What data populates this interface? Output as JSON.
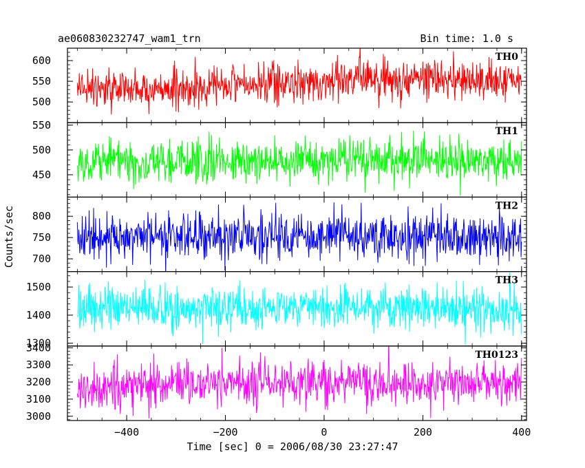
{
  "header": {
    "title": "ae060830232747_wam1_trn",
    "bin_time": "Bin time: 1.0 s"
  },
  "chart_data": {
    "type": "line",
    "title": "ae060830232747_wam1_trn",
    "subtitle": "Bin time: 1.0 s",
    "xlabel": "Time [sec] 0 = 2006/08/30 23:27:47",
    "ylabel": "Counts/sec",
    "xlim": [
      -520,
      410
    ],
    "x_ticks": [
      -400,
      -200,
      0,
      200,
      400
    ],
    "x_tick_labels": [
      "−400",
      "−200",
      "0",
      "200",
      "400"
    ],
    "x_range_data": [
      -500,
      400
    ],
    "bin_seconds": 1.0,
    "grid": false,
    "panels": [
      {
        "name": "TH0",
        "color": "#ff0000",
        "ylim": [
          450,
          630
        ],
        "y_ticks": [
          500,
          550,
          600
        ],
        "y_tick_labels": [
          "500",
          "550",
          "600"
        ],
        "mean": 540,
        "noise_std": 24,
        "trend": [
          [
            -500,
            535
          ],
          [
            -400,
            528
          ],
          [
            -200,
            538
          ],
          [
            0,
            550
          ],
          [
            100,
            552
          ],
          [
            200,
            560
          ],
          [
            300,
            550
          ],
          [
            400,
            550
          ]
        ]
      },
      {
        "name": "TH1",
        "color": "#00ff00",
        "ylim": [
          405,
          555
        ],
        "y_ticks": [
          450,
          500,
          550
        ],
        "y_tick_labels": [
          "450",
          "500",
          "550"
        ],
        "mean": 475,
        "noise_std": 22,
        "trend": [
          [
            -500,
            475
          ],
          [
            -200,
            478
          ],
          [
            0,
            478
          ],
          [
            200,
            478
          ],
          [
            400,
            475
          ]
        ]
      },
      {
        "name": "TH2",
        "color": "#0000ff",
        "ylim": [
          670,
          845
        ],
        "y_ticks": [
          700,
          750,
          800
        ],
        "y_tick_labels": [
          "700",
          "750",
          "800"
        ],
        "mean": 752,
        "noise_std": 28,
        "trend": [
          [
            -500,
            752
          ],
          [
            -200,
            752
          ],
          [
            0,
            755
          ],
          [
            200,
            752
          ],
          [
            400,
            750
          ]
        ]
      },
      {
        "name": "TH3",
        "color": "#00ffff",
        "ylim": [
          1290,
          1555
        ],
        "y_ticks": [
          1300,
          1400,
          1500
        ],
        "y_tick_labels": [
          "1300",
          "1400",
          "1500"
        ],
        "mean": 1420,
        "noise_std": 38,
        "trend": [
          [
            -500,
            1420
          ],
          [
            -200,
            1425
          ],
          [
            0,
            1425
          ],
          [
            200,
            1425
          ],
          [
            400,
            1415
          ]
        ]
      },
      {
        "name": "TH0123",
        "color": "#ff00ff",
        "ylim": [
          2975,
          3410
        ],
        "y_ticks": [
          3000,
          3100,
          3200,
          3300,
          3400
        ],
        "y_tick_labels": [
          "3000",
          "3100",
          "3200",
          "3300",
          "3400"
        ],
        "mean": 3190,
        "noise_std": 65,
        "trend": [
          [
            -500,
            3175
          ],
          [
            -200,
            3190
          ],
          [
            0,
            3200
          ],
          [
            200,
            3195
          ],
          [
            400,
            3185
          ]
        ]
      }
    ]
  }
}
